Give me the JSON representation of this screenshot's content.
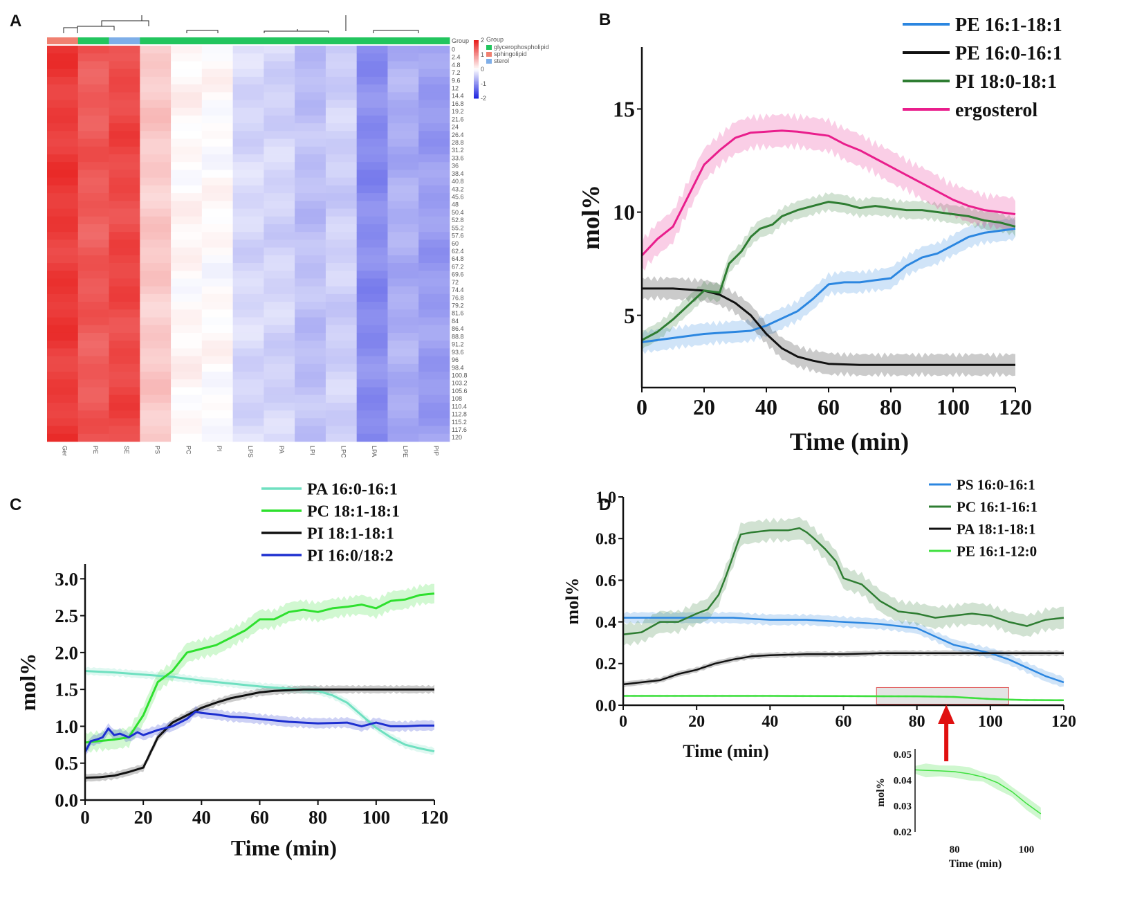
{
  "panel_labels": [
    "A",
    "B",
    "C",
    "D"
  ],
  "chart_data": [
    {
      "panel": "A",
      "type": "heatmap",
      "columns": [
        "Ger",
        "PE",
        "SE",
        "PS",
        "PC",
        "PI",
        "LPS",
        "PA",
        "LPI",
        "LPC",
        "LPA",
        "LPE",
        "PIP"
      ],
      "rows": [
        "0",
        "2.4",
        "4.8",
        "7.2",
        "9.6",
        "12",
        "14.4",
        "16.8",
        "19.2",
        "21.6",
        "24",
        "26.4",
        "28.8",
        "31.2",
        "33.6",
        "36",
        "38.4",
        "40.8",
        "43.2",
        "45.6",
        "48",
        "50.4",
        "52.8",
        "55.2",
        "57.6",
        "60",
        "62.4",
        "64.8",
        "67.2",
        "69.6",
        "72",
        "74.4",
        "76.8",
        "79.2",
        "81.6",
        "84",
        "86.4",
        "88.8",
        "91.2",
        "93.6",
        "96",
        "98.4",
        "100.8",
        "103.2",
        "105.6",
        "108",
        "110.4",
        "112.8",
        "115.2",
        "117.6",
        "120"
      ],
      "column_values": [
        2.2,
        1.85,
        2.05,
        0.6,
        0.08,
        0.02,
        -0.45,
        -0.5,
        -0.75,
        -0.55,
        -1.35,
        -0.95,
        -1.15
      ],
      "group_row_label": "Group",
      "column_groups": [
        "glycerophospholipid",
        "sphingolipid",
        "sterol"
      ],
      "column_group_membership": [
        "sphingolipid",
        "glycerophospholipid",
        "sterol",
        "glycerophospholipid",
        "glycerophospholipid",
        "glycerophospholipid",
        "glycerophospholipid",
        "glycerophospholipid",
        "glycerophospholipid",
        "glycerophospholipid",
        "glycerophospholipid",
        "glycerophospholipid",
        "glycerophospholipid"
      ],
      "group_colors": [
        "#22c55e",
        "#f08070",
        "#7eaee8"
      ],
      "colorbar_ticks": [
        "2",
        "1",
        "0",
        "-1",
        "-2"
      ],
      "colorbar_range": [
        -2,
        2
      ],
      "colors": {
        "high": "#e8201e",
        "mid": "#ffffff",
        "low": "#2228e0"
      }
    },
    {
      "panel": "B",
      "type": "line",
      "xlabel": "Time (min)",
      "ylabel": "mol%",
      "xlim": [
        0,
        120
      ],
      "ylim": [
        1.5,
        18
      ],
      "xticks": [
        0,
        20,
        40,
        60,
        80,
        100,
        120
      ],
      "yticks": [
        5,
        10,
        15
      ],
      "legend_position": "top-right",
      "series": [
        {
          "name": "PE 16:1-18:1",
          "color": "#2b86e0",
          "band": 0.6,
          "x": [
            0,
            10,
            20,
            30,
            35,
            40,
            50,
            55,
            60,
            65,
            70,
            75,
            80,
            85,
            90,
            95,
            100,
            105,
            110,
            115,
            120
          ],
          "y": [
            3.7,
            3.9,
            4.1,
            4.2,
            4.25,
            4.5,
            5.2,
            5.8,
            6.5,
            6.6,
            6.6,
            6.7,
            6.8,
            7.4,
            7.8,
            8.0,
            8.4,
            8.8,
            9.0,
            9.1,
            9.2
          ]
        },
        {
          "name": "PE 16:0-16:1",
          "color": "#111111",
          "band": 0.6,
          "x": [
            0,
            10,
            20,
            25,
            30,
            35,
            40,
            45,
            50,
            55,
            60,
            70,
            80,
            90,
            100,
            110,
            120
          ],
          "y": [
            6.3,
            6.3,
            6.2,
            6.0,
            5.6,
            5.0,
            4.1,
            3.4,
            3.0,
            2.8,
            2.65,
            2.6,
            2.6,
            2.6,
            2.6,
            2.6,
            2.6
          ]
        },
        {
          "name": "PI 18:0-18:1",
          "color": "#2e7d32",
          "band": 0.5,
          "x": [
            0,
            5,
            10,
            15,
            20,
            25,
            28,
            32,
            35,
            38,
            42,
            45,
            50,
            55,
            60,
            65,
            70,
            75,
            80,
            85,
            90,
            95,
            100,
            105,
            110,
            115,
            120
          ],
          "y": [
            3.8,
            4.2,
            4.8,
            5.5,
            6.2,
            6.1,
            7.5,
            8.1,
            8.8,
            9.2,
            9.4,
            9.8,
            10.1,
            10.3,
            10.5,
            10.4,
            10.2,
            10.3,
            10.2,
            10.1,
            10.1,
            10.0,
            9.9,
            9.8,
            9.6,
            9.5,
            9.3
          ]
        },
        {
          "name": "ergosterol",
          "color": "#e91e8c",
          "band": 0.9,
          "x": [
            0,
            5,
            10,
            15,
            20,
            25,
            30,
            35,
            40,
            45,
            50,
            55,
            60,
            65,
            70,
            75,
            80,
            85,
            90,
            95,
            100,
            105,
            110,
            115,
            120
          ],
          "y": [
            7.9,
            8.7,
            9.3,
            10.8,
            12.3,
            13.0,
            13.6,
            13.85,
            13.9,
            13.95,
            13.9,
            13.8,
            13.7,
            13.3,
            13.0,
            12.6,
            12.2,
            11.8,
            11.4,
            11.0,
            10.6,
            10.3,
            10.1,
            10.0,
            9.9
          ]
        }
      ]
    },
    {
      "panel": "C",
      "type": "line",
      "xlabel": "Time (min)",
      "ylabel": "mol%",
      "xlim": [
        0,
        120
      ],
      "ylim": [
        0,
        3.2
      ],
      "xticks": [
        0,
        20,
        40,
        60,
        80,
        100,
        120
      ],
      "yticks": [
        0.0,
        0.5,
        1.0,
        1.5,
        2.0,
        2.5,
        3.0
      ],
      "legend_position": "top-right",
      "series": [
        {
          "name": "PA 16:0-16:1",
          "color": "#6fe0c0",
          "band": 0.06,
          "x": [
            0,
            10,
            20,
            30,
            40,
            50,
            60,
            70,
            80,
            85,
            90,
            95,
            100,
            105,
            110,
            115,
            120
          ],
          "y": [
            1.75,
            1.73,
            1.7,
            1.67,
            1.62,
            1.58,
            1.54,
            1.51,
            1.48,
            1.42,
            1.32,
            1.15,
            0.98,
            0.85,
            0.75,
            0.7,
            0.66
          ]
        },
        {
          "name": "PC 18:1-18:1",
          "color": "#2ee02e",
          "band": 0.15,
          "x": [
            0,
            5,
            10,
            15,
            20,
            25,
            30,
            35,
            40,
            45,
            50,
            55,
            60,
            65,
            70,
            75,
            80,
            85,
            90,
            95,
            100,
            105,
            110,
            115,
            120
          ],
          "y": [
            0.78,
            0.8,
            0.82,
            0.85,
            1.15,
            1.6,
            1.75,
            2.0,
            2.05,
            2.1,
            2.2,
            2.3,
            2.45,
            2.45,
            2.55,
            2.58,
            2.55,
            2.6,
            2.62,
            2.65,
            2.6,
            2.7,
            2.72,
            2.78,
            2.8
          ]
        },
        {
          "name": "PI  18:1-18:1",
          "color": "#111111",
          "band": 0.06,
          "x": [
            0,
            5,
            10,
            15,
            20,
            25,
            30,
            35,
            40,
            45,
            50,
            55,
            60,
            65,
            70,
            75,
            80,
            85,
            90,
            100,
            110,
            120
          ],
          "y": [
            0.3,
            0.31,
            0.33,
            0.38,
            0.44,
            0.85,
            1.05,
            1.15,
            1.25,
            1.32,
            1.38,
            1.42,
            1.46,
            1.48,
            1.49,
            1.5,
            1.5,
            1.5,
            1.5,
            1.5,
            1.5,
            1.5
          ]
        },
        {
          "name": "PI  16:0/18:2",
          "color": "#1d2fd0",
          "band": 0.08,
          "x": [
            0,
            2,
            4,
            6,
            8,
            10,
            12,
            15,
            18,
            20,
            25,
            30,
            35,
            38,
            40,
            45,
            50,
            55,
            60,
            70,
            80,
            90,
            95,
            100,
            105,
            110,
            115,
            120
          ],
          "y": [
            0.65,
            0.8,
            0.82,
            0.85,
            0.97,
            0.88,
            0.9,
            0.85,
            0.92,
            0.88,
            0.95,
            1.0,
            1.1,
            1.2,
            1.18,
            1.16,
            1.13,
            1.12,
            1.1,
            1.06,
            1.04,
            1.05,
            1.0,
            1.05,
            1.0,
            1.0,
            1.01,
            1.01
          ]
        }
      ]
    },
    {
      "panel": "D",
      "type": "line",
      "xlabel": "Time (min)",
      "ylabel": "mol%",
      "xlim": [
        0,
        120
      ],
      "ylim": [
        0,
        1.0
      ],
      "xticks": [
        0,
        20,
        40,
        60,
        80,
        100,
        120
      ],
      "yticks": [
        0.0,
        0.2,
        0.4,
        0.6,
        0.8,
        1.0
      ],
      "legend_position": "top-right",
      "series": [
        {
          "name": "PS 16:0-16:1",
          "color": "#2b86e0",
          "band": 0.03,
          "x": [
            0,
            10,
            20,
            30,
            40,
            50,
            60,
            70,
            80,
            85,
            90,
            95,
            100,
            105,
            110,
            115,
            120
          ],
          "y": [
            0.42,
            0.42,
            0.42,
            0.42,
            0.41,
            0.41,
            0.4,
            0.39,
            0.37,
            0.33,
            0.29,
            0.27,
            0.25,
            0.22,
            0.18,
            0.14,
            0.11
          ]
        },
        {
          "name": "PC 16:1-16:1",
          "color": "#2e7d32",
          "band": 0.06,
          "x": [
            0,
            5,
            10,
            15,
            20,
            23,
            26,
            28,
            30,
            32,
            35,
            40,
            45,
            48,
            50,
            52,
            55,
            58,
            60,
            65,
            70,
            75,
            80,
            85,
            90,
            95,
            100,
            105,
            110,
            115,
            120
          ],
          "y": [
            0.34,
            0.35,
            0.4,
            0.4,
            0.44,
            0.46,
            0.53,
            0.62,
            0.72,
            0.82,
            0.83,
            0.84,
            0.84,
            0.85,
            0.83,
            0.8,
            0.75,
            0.69,
            0.61,
            0.58,
            0.5,
            0.45,
            0.44,
            0.42,
            0.43,
            0.44,
            0.43,
            0.4,
            0.38,
            0.41,
            0.42
          ]
        },
        {
          "name": "PA 18:1-18:1",
          "color": "#111111",
          "band": 0.015,
          "x": [
            0,
            5,
            10,
            15,
            20,
            25,
            30,
            35,
            40,
            50,
            60,
            70,
            80,
            90,
            100,
            110,
            120
          ],
          "y": [
            0.1,
            0.11,
            0.12,
            0.15,
            0.17,
            0.2,
            0.22,
            0.235,
            0.24,
            0.245,
            0.245,
            0.25,
            0.25,
            0.25,
            0.25,
            0.25,
            0.25
          ]
        },
        {
          "name": "PE 16:1-12:0",
          "color": "#3ee03e",
          "band": 0.006,
          "x": [
            0,
            20,
            40,
            60,
            80,
            90,
            95,
            100,
            105,
            110,
            120
          ],
          "y": [
            0.045,
            0.045,
            0.045,
            0.044,
            0.043,
            0.04,
            0.035,
            0.03,
            0.027,
            0.025,
            0.024
          ]
        }
      ],
      "highlight_x": [
        69,
        105
      ],
      "arrow_x": 88,
      "inset": {
        "xlabel": "Time (min)",
        "ylabel": "mol%",
        "xlim": [
          69,
          105
        ],
        "ylim": [
          0.02,
          0.05
        ],
        "xticks": [
          80,
          100
        ],
        "yticks": [
          0.02,
          0.03,
          0.04,
          0.05
        ],
        "series_name": "PE 16:1-12:0",
        "x": [
          69,
          72,
          76,
          80,
          84,
          88,
          92,
          96,
          100,
          104
        ],
        "y": [
          0.044,
          0.0438,
          0.0436,
          0.0433,
          0.0425,
          0.0412,
          0.039,
          0.0355,
          0.031,
          0.027
        ]
      }
    }
  ]
}
